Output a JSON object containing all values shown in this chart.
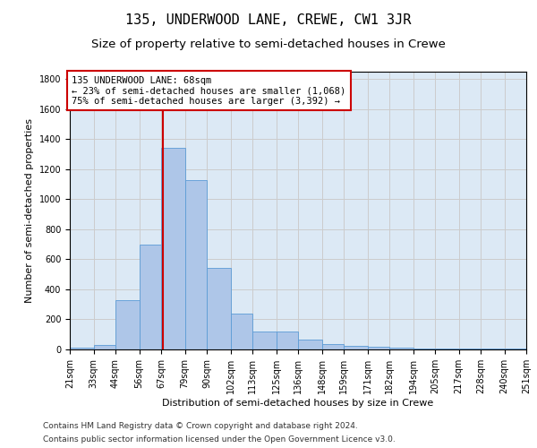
{
  "title": "135, UNDERWOOD LANE, CREWE, CW1 3JR",
  "subtitle": "Size of property relative to semi-detached houses in Crewe",
  "xlabel": "Distribution of semi-detached houses by size in Crewe",
  "ylabel": "Number of semi-detached properties",
  "bin_labels": [
    "21sqm",
    "33sqm",
    "44sqm",
    "56sqm",
    "67sqm",
    "79sqm",
    "90sqm",
    "102sqm",
    "113sqm",
    "125sqm",
    "136sqm",
    "148sqm",
    "159sqm",
    "171sqm",
    "182sqm",
    "194sqm",
    "205sqm",
    "217sqm",
    "228sqm",
    "240sqm",
    "251sqm"
  ],
  "bin_edges": [
    21,
    33,
    44,
    56,
    67,
    79,
    90,
    102,
    113,
    125,
    136,
    148,
    159,
    171,
    182,
    194,
    205,
    217,
    228,
    240,
    251
  ],
  "bar_heights": [
    10,
    30,
    330,
    700,
    1340,
    1130,
    545,
    240,
    120,
    120,
    65,
    35,
    25,
    20,
    12,
    8,
    5,
    5,
    3,
    3,
    12
  ],
  "bar_color": "#aec6e8",
  "bar_edge_color": "#5b9bd5",
  "property_size": 68,
  "property_line_color": "#cc0000",
  "annotation_line1": "135 UNDERWOOD LANE: 68sqm",
  "annotation_line2": "← 23% of semi-detached houses are smaller (1,068)",
  "annotation_line3": "75% of semi-detached houses are larger (3,392) →",
  "annotation_box_color": "#ffffff",
  "annotation_box_edge_color": "#cc0000",
  "ylim": [
    0,
    1850
  ],
  "yticks": [
    0,
    200,
    400,
    600,
    800,
    1000,
    1200,
    1400,
    1600,
    1800
  ],
  "grid_color": "#cccccc",
  "footer_line1": "Contains HM Land Registry data © Crown copyright and database right 2024.",
  "footer_line2": "Contains public sector information licensed under the Open Government Licence v3.0.",
  "title_fontsize": 11,
  "subtitle_fontsize": 9.5,
  "axis_label_fontsize": 8,
  "tick_fontsize": 7,
  "annotation_fontsize": 7.5,
  "footer_fontsize": 6.5,
  "bg_color": "#dce9f5"
}
